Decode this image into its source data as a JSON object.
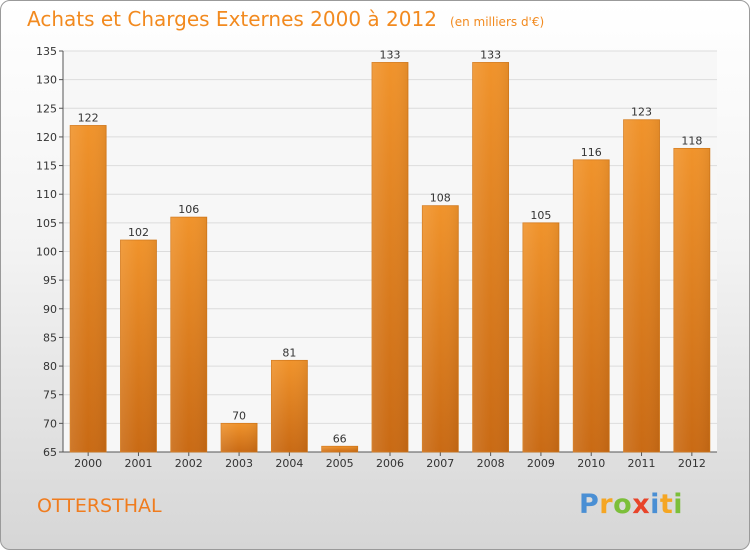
{
  "chart_data": {
    "type": "bar",
    "title": "Achats et Charges Externes 2000 à 2012",
    "subtitle": "(en milliers d'€)",
    "categories": [
      "2000",
      "2001",
      "2002",
      "2003",
      "2004",
      "2005",
      "2006",
      "2007",
      "2008",
      "2009",
      "2010",
      "2011",
      "2012"
    ],
    "values": [
      122,
      102,
      106,
      70,
      81,
      66,
      133,
      108,
      133,
      105,
      116,
      123,
      118
    ],
    "ylim": [
      65,
      135
    ],
    "yticks": [
      65,
      70,
      75,
      80,
      85,
      90,
      95,
      100,
      105,
      110,
      115,
      120,
      125,
      130,
      135
    ],
    "grid": true,
    "bar_color": "#f0932b",
    "bar_color_dark": "#c96a14",
    "show_value_labels": true
  },
  "footer": {
    "commune": "OTTERSTHAL",
    "brand_letters": [
      {
        "ch": "P",
        "color": "#4a8fd4"
      },
      {
        "ch": "r",
        "color": "#f5a623"
      },
      {
        "ch": "o",
        "color": "#7cbf3a"
      },
      {
        "ch": "x",
        "color": "#e8442a"
      },
      {
        "ch": "i",
        "color": "#4a8fd4"
      },
      {
        "ch": "t",
        "color": "#f5a623"
      },
      {
        "ch": "i",
        "color": "#7cbf3a"
      }
    ]
  }
}
